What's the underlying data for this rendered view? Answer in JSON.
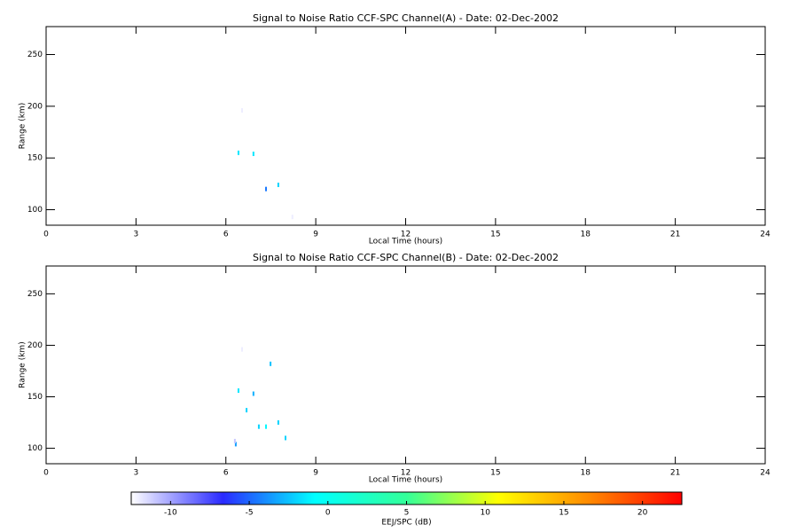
{
  "chart_data": [
    {
      "type": "scatter",
      "title": "Signal to Noise Ratio CCF-SPC Channel(A) - Date: 02-Dec-2002",
      "xlabel": "Local Time (hours)",
      "ylabel": "Range (km)",
      "xlim": [
        0,
        24
      ],
      "xticks": [
        0,
        3,
        6,
        9,
        12,
        15,
        18,
        21,
        24
      ],
      "ylim": [
        85,
        277
      ],
      "yticks": [
        100,
        150,
        200,
        250
      ],
      "x": [
        6.42,
        6.92,
        7.34,
        7.75,
        6.54,
        8.22
      ],
      "values": [
        155,
        154,
        120,
        124,
        196,
        93
      ],
      "z": [
        -1.5,
        -1.5,
        -4.5,
        -2,
        -12,
        -12
      ]
    },
    {
      "type": "scatter",
      "title": "Signal to Noise Ratio CCF-SPC Channel(B) - Date: 02-Dec-2002",
      "xlabel": "Local Time (hours)",
      "ylabel": "Range (km)",
      "xlim": [
        0,
        24
      ],
      "xticks": [
        0,
        3,
        6,
        9,
        12,
        15,
        18,
        21,
        24
      ],
      "ylim": [
        85,
        277
      ],
      "yticks": [
        100,
        150,
        200,
        250
      ],
      "x": [
        6.33,
        6.42,
        6.69,
        6.92,
        7.1,
        7.34,
        7.49,
        7.75,
        7.99,
        6.3,
        6.54
      ],
      "values": [
        104,
        156,
        137,
        153,
        121,
        121,
        182,
        125,
        110,
        107,
        196
      ],
      "z": [
        -3.5,
        -1.5,
        -2,
        -3,
        -2,
        -1,
        -2.5,
        -2,
        -2,
        -11,
        -12
      ]
    },
    {
      "type": "colorbar",
      "label": "EEJ/SPC (dB)",
      "xlim": [
        -12.5,
        22.5
      ],
      "xticks": [
        -10,
        -5,
        0,
        5,
        10,
        15,
        20
      ],
      "colormap": [
        "#ffffff",
        "#2a2aff",
        "#00ffff",
        "#33ff99",
        "#ffff00",
        "#ff8800",
        "#ff0000"
      ]
    }
  ]
}
